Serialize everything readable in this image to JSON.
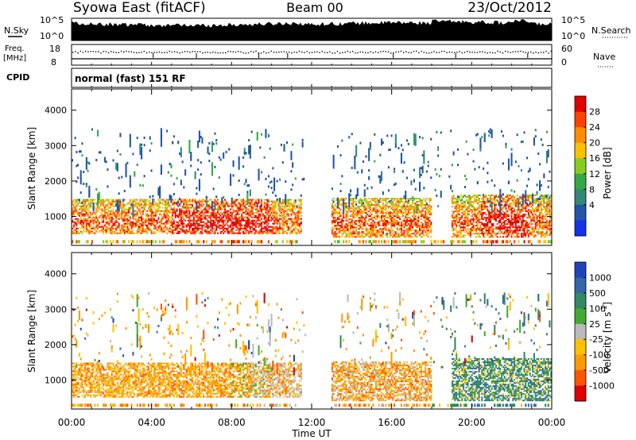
{
  "header": {
    "station": "Syowa East (fitACF)",
    "beam": "Beam 00",
    "date": "23/Oct/2012"
  },
  "panels": {
    "nsky": {
      "label": "N.Sky",
      "right_label": "N.Search",
      "tick_top": "10^5",
      "tick_bottom": "10^0",
      "right_tick_top": "10^5",
      "right_tick_bottom": "10^0"
    },
    "freq": {
      "label_top": "Freq.",
      "label_unit": "[MHz]",
      "tick_top": "18",
      "tick_bottom": "8",
      "right_label": "Nave",
      "right_tick_top": "60",
      "right_tick_bottom": "0"
    },
    "cpid": {
      "label": "CPID",
      "value": "normal (fast) 151 RF"
    }
  },
  "power_colorbar": {
    "label": "Power [dB]",
    "ticks": [
      "28",
      "24",
      "20",
      "16",
      "12",
      "8",
      "4"
    ],
    "colors": [
      "#e00000",
      "#ff4000",
      "#ff8c00",
      "#ffc000",
      "#88cc22",
      "#33aa44",
      "#338877",
      "#2255aa",
      "#1133ee"
    ]
  },
  "velocity_colorbar": {
    "label": "Velocity [m s",
    "label_sup": "-1",
    "label_close": "]",
    "ticks": [
      "1000",
      "500",
      "100",
      "25",
      "-25",
      "-100",
      "-500",
      "-1000"
    ],
    "colors": [
      "#2244bb",
      "#3366aa",
      "#338866",
      "#44aa33",
      "#bbbbbb",
      "#ffc000",
      "#ff9900",
      "#ff5500",
      "#e00000"
    ]
  },
  "chart_data": [
    {
      "type": "heatmap",
      "title": "",
      "xlabel": "",
      "ylabel": "Slant Range [km]",
      "xlim": [
        "00:00",
        "24:00"
      ],
      "ylim": [
        180,
        4600
      ],
      "yticks": [
        "1000",
        "2000",
        "3000",
        "4000"
      ],
      "xticks": [
        "00:00",
        "04:00",
        "08:00",
        "12:00",
        "16:00",
        "20:00",
        "00:00"
      ],
      "color_quantity": "Power [dB]",
      "dense_echo_bands": [
        {
          "start": "00:00",
          "end": "11:30",
          "range_min": 500,
          "range_max": 1450
        },
        {
          "start": "13:00",
          "end": "18:00",
          "range_min": 400,
          "range_max": 1500
        },
        {
          "start": "19:00",
          "end": "24:00",
          "range_min": 400,
          "range_max": 1600
        }
      ],
      "data_gap": {
        "start": "11:45",
        "end": "13:00"
      }
    },
    {
      "type": "heatmap",
      "title": "",
      "xlabel": "Time UT",
      "ylabel": "Slant Range [km]",
      "xlim": [
        "00:00",
        "24:00"
      ],
      "ylim": [
        180,
        4600
      ],
      "yticks": [
        "1000",
        "2000",
        "3000",
        "4000"
      ],
      "xticks": [
        "00:00",
        "04:00",
        "08:00",
        "12:00",
        "16:00",
        "20:00",
        "00:00"
      ],
      "color_quantity": "Velocity [m s-1]",
      "dense_echo_bands": [
        {
          "start": "00:00",
          "end": "11:30",
          "range_min": 500,
          "range_max": 1450
        },
        {
          "start": "13:00",
          "end": "18:00",
          "range_min": 400,
          "range_max": 1500
        },
        {
          "start": "19:00",
          "end": "24:00",
          "range_min": 400,
          "range_max": 1600
        }
      ],
      "data_gap": {
        "start": "11:45",
        "end": "13:00"
      }
    }
  ]
}
